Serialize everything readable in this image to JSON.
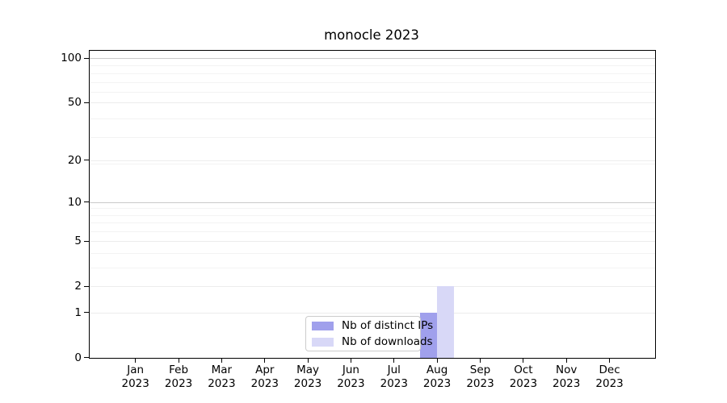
{
  "chart_data": {
    "type": "bar",
    "title": "monocle 2023",
    "categories": [
      "Jan",
      "Feb",
      "Mar",
      "Apr",
      "May",
      "Jun",
      "Jul",
      "Aug",
      "Sep",
      "Oct",
      "Nov",
      "Dec"
    ],
    "x_tick_second_line": "2023",
    "series": [
      {
        "name": "Nb of distinct IPs",
        "key": "distinct-ips",
        "color": "#a0a0ec",
        "values": [
          0,
          0,
          0,
          0,
          0,
          0,
          0,
          1,
          0,
          0,
          0,
          0
        ]
      },
      {
        "name": "Nb of downloads",
        "key": "downloads",
        "color": "#d8d8f7",
        "values": [
          0,
          0,
          0,
          0,
          0,
          0,
          0,
          2,
          0,
          0,
          0,
          0
        ]
      }
    ],
    "y_axis": {
      "scale": "log1p",
      "tick_values": [
        100,
        50,
        20,
        10,
        5,
        2,
        1,
        0
      ],
      "ylim": [
        0,
        112
      ],
      "emphasized_gridlines": [
        10,
        100
      ]
    },
    "legend": {
      "position": "lower-center"
    },
    "grid": {
      "orientation": "horizontal"
    },
    "colors": {
      "axis": "#000000",
      "grid_minor": "#f3f3f3",
      "grid_major": "#ececec",
      "grid_emphasized": "#c9c9c9",
      "legend_border": "#cccccc",
      "legend_bg": "rgba(255,255,255,0.8)"
    }
  }
}
